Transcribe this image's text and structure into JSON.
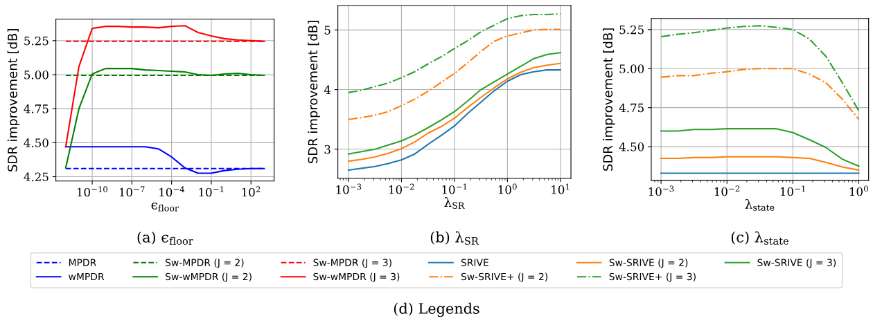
{
  "chart_data": [
    {
      "type": "line",
      "log": "x",
      "grid": true,
      "legend": "bottom",
      "xlabel": "ϵ$_{floor}$",
      "ylabel": "SDR improvement [dB]",
      "annotations": [
        "(a) ϵ$_{floor}$"
      ],
      "x": [
        1e-12,
        1e-11,
        1e-10,
        1e-09,
        1e-08,
        1e-07,
        1e-06,
        1e-05,
        0.0001,
        0.001,
        0.01,
        0.1,
        1,
        10,
        100,
        1000
      ],
      "xlim": [
        1.8e-13,
        5600.0
      ],
      "ylim": [
        4.218,
        5.408
      ],
      "xticks": [
        {
          "value": 1e-10,
          "label": "10$^{−10}$"
        },
        {
          "value": 1e-07,
          "label": "10$^{−7}$"
        },
        {
          "value": 0.0001,
          "label": "10$^{−4}$"
        },
        {
          "value": 0.1,
          "label": "10$^{−1}$"
        },
        {
          "value": 100,
          "label": "10$^{2}$"
        }
      ],
      "yticks": [
        {
          "value": 4.25,
          "label": "4.25"
        },
        {
          "value": 4.5,
          "label": "4.50"
        },
        {
          "value": 4.75,
          "label": "4.75"
        },
        {
          "value": 5.0,
          "label": "5.00"
        },
        {
          "value": 5.25,
          "label": "5.25"
        }
      ],
      "series": [
        {
          "name": "MPDR",
          "color": "#0000ff",
          "line_style": "dashed",
          "values": [
            4.31,
            4.31,
            4.31,
            4.31,
            4.31,
            4.31,
            4.31,
            4.31,
            4.31,
            4.31,
            4.31,
            4.31,
            4.31,
            4.31,
            4.31,
            4.31
          ]
        },
        {
          "name": "wMPDR",
          "color": "#0000ff",
          "line_style": "solid",
          "values": [
            4.47,
            4.47,
            4.47,
            4.47,
            4.47,
            4.47,
            4.47,
            4.455,
            4.395,
            4.315,
            4.275,
            4.275,
            4.295,
            4.305,
            4.31,
            4.31
          ]
        },
        {
          "name": "Sw-MPDR (J = 2)",
          "color": "#008000",
          "line_style": "dashed",
          "values": [
            4.995,
            4.995,
            4.995,
            4.995,
            4.995,
            4.995,
            4.995,
            4.995,
            4.995,
            4.995,
            4.995,
            4.995,
            4.995,
            4.995,
            4.995,
            4.995
          ]
        },
        {
          "name": "Sw-wMPDR (J = 2)",
          "color": "#008000",
          "line_style": "solid",
          "values": [
            4.315,
            4.75,
            5.005,
            5.045,
            5.045,
            5.045,
            5.035,
            5.03,
            5.025,
            5.02,
            5.0,
            4.995,
            5.005,
            5.01,
            5.0,
            4.995
          ]
        },
        {
          "name": "Sw-MPDR (J = 3)",
          "color": "#ff0000",
          "line_style": "dashed",
          "values": [
            5.245,
            5.245,
            5.245,
            5.245,
            5.245,
            5.245,
            5.245,
            5.245,
            5.245,
            5.245,
            5.245,
            5.245,
            5.245,
            5.245,
            5.245,
            5.245
          ]
        },
        {
          "name": "Sw-wMPDR (J = 3)",
          "color": "#ff0000",
          "line_style": "solid",
          "values": [
            4.47,
            5.06,
            5.34,
            5.355,
            5.355,
            5.35,
            5.35,
            5.345,
            5.355,
            5.36,
            5.31,
            5.285,
            5.265,
            5.255,
            5.25,
            5.245
          ]
        }
      ]
    },
    {
      "type": "line",
      "log": "x",
      "grid": true,
      "legend": "bottom",
      "xlabel": "λ$_{SR}$",
      "ylabel": "SDR improvement [dB]",
      "annotations": [
        "(b) λ$_{SR}$"
      ],
      "x": [
        0.001,
        0.00178,
        0.00316,
        0.00562,
        0.01,
        0.0178,
        0.0316,
        0.0562,
        0.1,
        0.178,
        0.316,
        0.562,
        1,
        1.78,
        3.16,
        5.62,
        10
      ],
      "xlim": [
        0.00063,
        15.8
      ],
      "ylim": [
        2.51,
        5.41
      ],
      "xticks": [
        {
          "value": 0.001,
          "label": "10$^{−3}$"
        },
        {
          "value": 0.01,
          "label": "10$^{−2}$"
        },
        {
          "value": 0.1,
          "label": "10$^{−1}$"
        },
        {
          "value": 1,
          "label": "10$^{0}$"
        },
        {
          "value": 10,
          "label": "10$^{1}$"
        }
      ],
      "yticks": [
        3,
        4,
        5
      ],
      "series": [
        {
          "name": "SRIVE",
          "color": "#1f77b4",
          "line_style": "solid",
          "values": [
            2.65,
            2.68,
            2.71,
            2.76,
            2.82,
            2.92,
            3.08,
            3.23,
            3.39,
            3.6,
            3.79,
            3.98,
            4.14,
            4.25,
            4.3,
            4.33,
            4.33
          ]
        },
        {
          "name": "Sw-SRIVE+ (J = 2)",
          "color": "#ff7f0e",
          "line_style": "dashdot",
          "values": [
            3.5,
            3.53,
            3.57,
            3.63,
            3.73,
            3.84,
            3.97,
            4.12,
            4.27,
            4.45,
            4.64,
            4.81,
            4.9,
            4.95,
            5.0,
            5.01,
            5.01
          ]
        },
        {
          "name": "Sw-SRIVE (J = 2)",
          "color": "#ff7f0e",
          "line_style": "solid",
          "values": [
            2.8,
            2.83,
            2.87,
            2.93,
            3.01,
            3.12,
            3.27,
            3.38,
            3.52,
            3.7,
            3.87,
            4.03,
            4.18,
            4.29,
            4.37,
            4.41,
            4.44
          ]
        },
        {
          "name": "Sw-SRIVE+ (J = 3)",
          "color": "#2ca02c",
          "line_style": "dashdot",
          "values": [
            3.95,
            3.99,
            4.05,
            4.11,
            4.2,
            4.3,
            4.43,
            4.55,
            4.69,
            4.82,
            4.97,
            5.08,
            5.19,
            5.24,
            5.26,
            5.26,
            5.27
          ]
        },
        {
          "name": "Sw-SRIVE (J = 3)",
          "color": "#2ca02c",
          "line_style": "solid",
          "values": [
            2.92,
            2.96,
            3.0,
            3.07,
            3.14,
            3.24,
            3.36,
            3.49,
            3.63,
            3.81,
            4.0,
            4.13,
            4.26,
            4.39,
            4.52,
            4.59,
            4.62
          ]
        }
      ]
    },
    {
      "type": "line",
      "log": "x",
      "grid": true,
      "legend": "bottom",
      "xlabel": "λ$_{state}$",
      "ylabel": "SDR improvement [dB]",
      "annotations": [
        "(c) λ$_{state}$"
      ],
      "x": [
        0.001,
        0.00178,
        0.00316,
        0.00562,
        0.01,
        0.0178,
        0.0316,
        0.0562,
        0.1,
        0.178,
        0.316,
        0.562,
        1
      ],
      "xlim": [
        0.00071,
        1.41
      ],
      "ylim": [
        4.284,
        5.321
      ],
      "xticks": [
        {
          "value": 0.001,
          "label": "10$^{−3}$"
        },
        {
          "value": 0.01,
          "label": "10$^{−2}$"
        },
        {
          "value": 0.1,
          "label": "10$^{−1}$"
        },
        {
          "value": 1,
          "label": "10$^{0}$"
        }
      ],
      "yticks": [
        {
          "value": 4.5,
          "label": "4.50"
        },
        {
          "value": 4.75,
          "label": "4.75"
        },
        {
          "value": 5.0,
          "label": "5.00"
        },
        {
          "value": 5.25,
          "label": "5.25"
        }
      ],
      "series": [
        {
          "name": "SRIVE",
          "color": "#1f77b4",
          "line_style": "solid",
          "values": [
            4.33,
            4.33,
            4.33,
            4.33,
            4.33,
            4.33,
            4.33,
            4.33,
            4.33,
            4.33,
            4.33,
            4.33,
            4.33
          ]
        },
        {
          "name": "Sw-SRIVE+ (J = 2)",
          "color": "#ff7f0e",
          "line_style": "dashdot",
          "values": [
            4.945,
            4.955,
            4.955,
            4.97,
            4.98,
            4.995,
            5.0,
            5.0,
            5.0,
            4.965,
            4.91,
            4.805,
            4.675
          ]
        },
        {
          "name": "Sw-SRIVE (J = 2)",
          "color": "#ff7f0e",
          "line_style": "solid",
          "values": [
            4.425,
            4.425,
            4.43,
            4.43,
            4.435,
            4.435,
            4.435,
            4.435,
            4.43,
            4.425,
            4.4,
            4.37,
            4.35
          ]
        },
        {
          "name": "Sw-SRIVE+ (J = 3)",
          "color": "#2ca02c",
          "line_style": "dashdot",
          "values": [
            5.205,
            5.22,
            5.23,
            5.245,
            5.26,
            5.27,
            5.275,
            5.265,
            5.25,
            5.19,
            5.08,
            4.91,
            4.73
          ]
        },
        {
          "name": "Sw-SRIVE (J = 3)",
          "color": "#2ca02c",
          "line_style": "solid",
          "values": [
            4.6,
            4.6,
            4.61,
            4.61,
            4.615,
            4.615,
            4.615,
            4.615,
            4.59,
            4.545,
            4.495,
            4.42,
            4.375
          ]
        }
      ]
    },
    {
      "type": "other",
      "annotations": [
        "(d) Legends"
      ]
    }
  ]
}
